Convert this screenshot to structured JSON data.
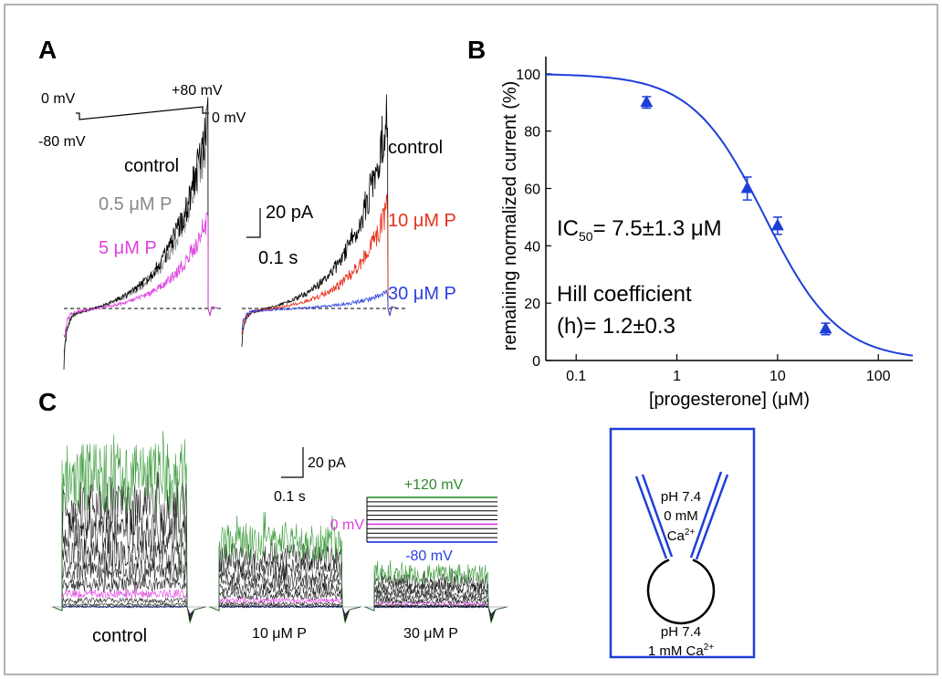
{
  "panel_a": {
    "label": "A",
    "protocol": {
      "hold": "0 mV",
      "peak": "+80 mV",
      "end": "0 mV",
      "start": "-80 mV"
    },
    "left": {
      "control": "control",
      "p05": "0.5 μM P",
      "p5": "5 μM P"
    },
    "scale": {
      "current": "20 pA",
      "time": "0.1 s"
    },
    "right": {
      "control": "control",
      "p10": "10 μM P",
      "p30": "30 μM P"
    }
  },
  "chart_data": {
    "type": "scatter",
    "panel_label": "B",
    "x_label": "[progesterone] (μM)",
    "y_label": "remaining normalized current (%)",
    "log_x": true,
    "x": [
      0.5,
      5,
      10,
      30
    ],
    "values": [
      90,
      60,
      47,
      11
    ],
    "errors": [
      2,
      4,
      3,
      2
    ],
    "color": "#1e3ed8",
    "xlim": [
      0.05,
      220
    ],
    "xticks": [
      0.1,
      1,
      10,
      100
    ],
    "ylim": [
      0,
      106
    ],
    "yticks": [
      0,
      20,
      40,
      60,
      80,
      100
    ],
    "fit": {
      "ic50": 7.5,
      "hill": 1.2
    },
    "ic50_text": {
      "main": "IC",
      "sub": "50",
      "rest": "= 7.5±1.3 μM"
    },
    "hill_text": [
      "Hill coefficient",
      "(h)= 1.2±0.3"
    ]
  },
  "panel_c": {
    "label": "C",
    "scale": {
      "current": "20 pA",
      "time": "0.1 s"
    },
    "protocol": {
      "top": "+120 mV",
      "mid": "0 mV",
      "bottom": "-80 mV"
    },
    "conditions": [
      "control",
      "10 μM P",
      "30 μM P"
    ]
  },
  "diagram": {
    "pipette": {
      "ph": "pH 7.4",
      "ca": "0 mM",
      "ion": "Ca",
      "charge": "2+"
    },
    "bath": {
      "ph": "pH 7.4",
      "ca": "1 mM Ca",
      "charge": "2+"
    }
  }
}
